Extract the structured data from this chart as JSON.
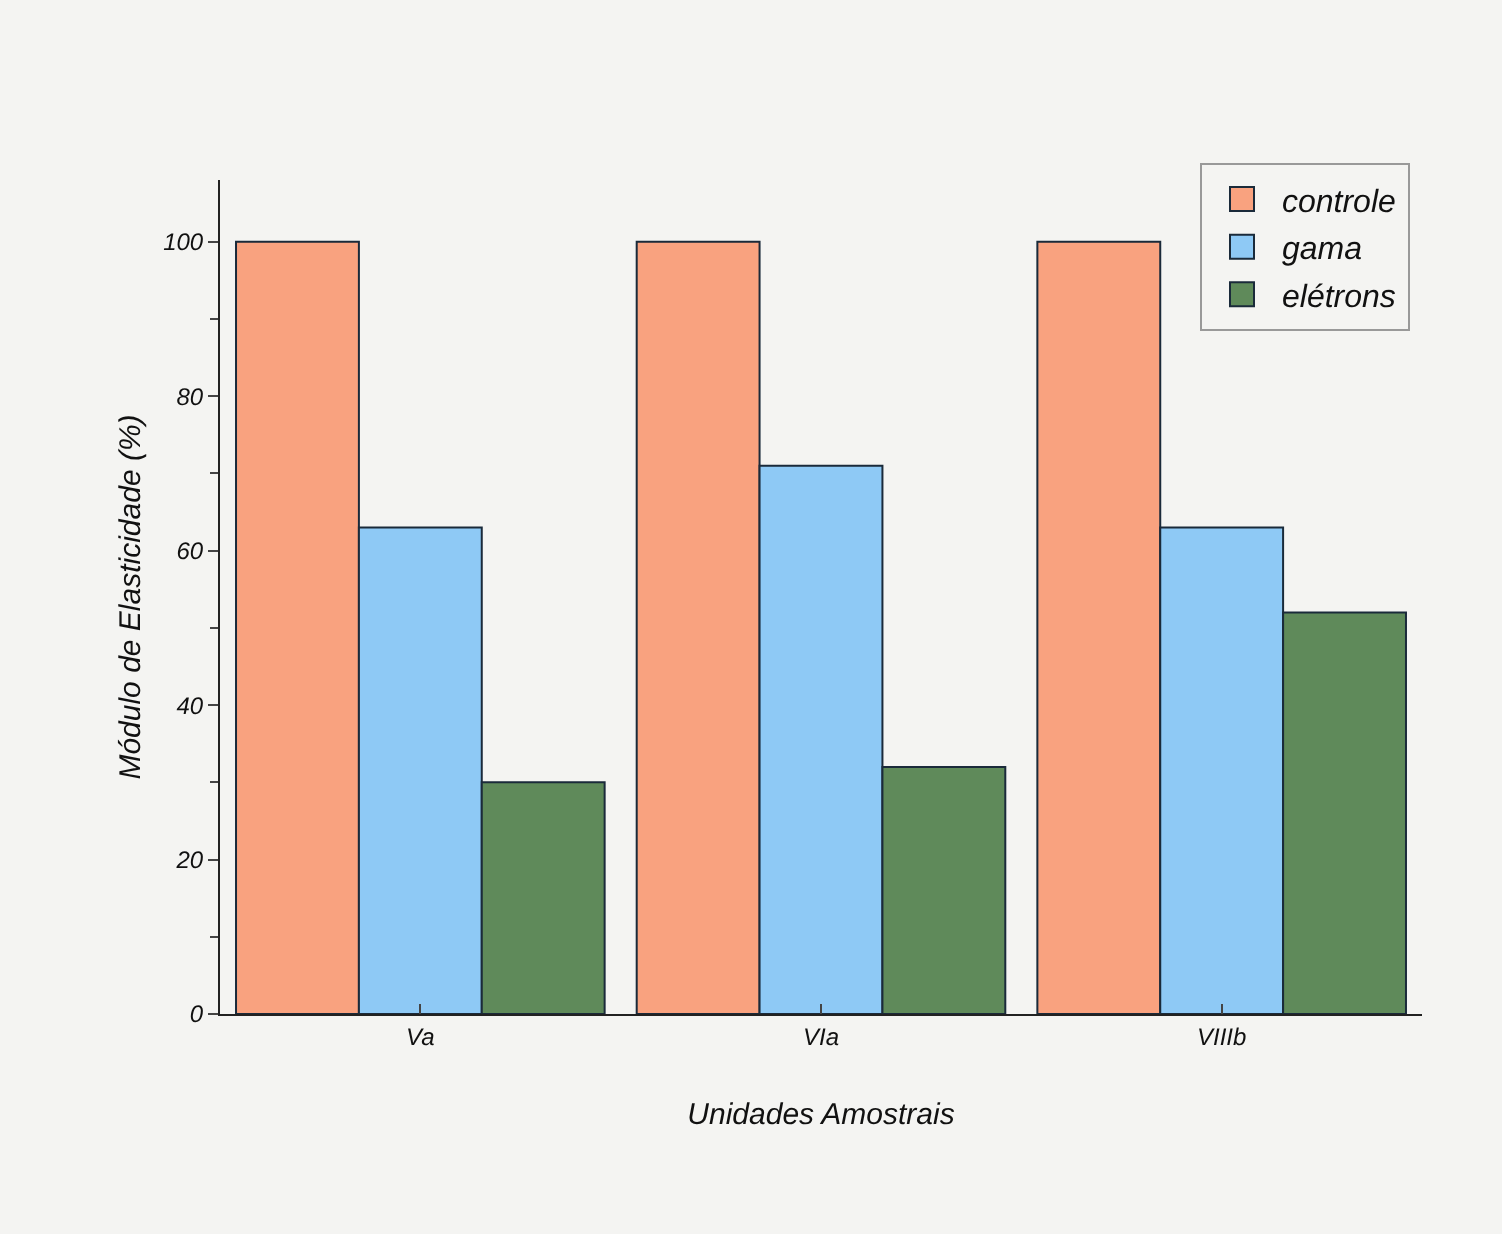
{
  "chart_data": {
    "type": "bar",
    "xlabel": "Unidades Amostrais",
    "ylabel": "Módulo de Elasticidade (%)",
    "categories": [
      "Va",
      "VIa",
      "VIIIb"
    ],
    "series": [
      {
        "name": "controle",
        "color": "#f9a27f",
        "values": [
          100,
          100,
          100
        ]
      },
      {
        "name": "gama",
        "color": "#8ec9f5",
        "values": [
          63,
          71,
          63
        ]
      },
      {
        "name": "elétrons",
        "color": "#5f8a5a",
        "values": [
          30,
          32,
          52
        ]
      }
    ],
    "ylim": [
      0,
      108
    ],
    "yticks": [
      0,
      20,
      40,
      60,
      80,
      100
    ],
    "grid": false,
    "legend": "top right"
  }
}
